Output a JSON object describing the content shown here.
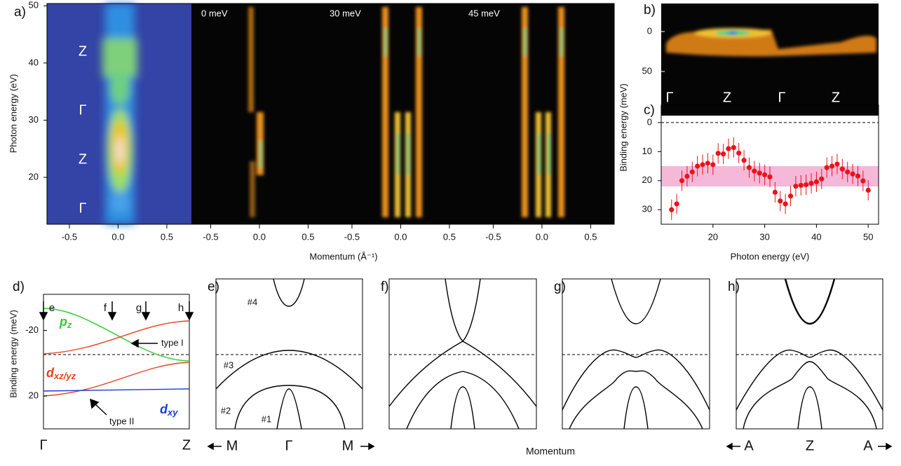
{
  "panels": {
    "a": {
      "label": "a)",
      "ylabel": "Photon energy (eV)",
      "xlabel": "Momentum (Å⁻¹)",
      "ylim": [
        11.8,
        50.4
      ],
      "yticks": [
        20,
        30,
        40,
        50
      ],
      "xlim": [
        -0.73,
        0.72
      ],
      "xticks": [
        -0.5,
        {
          "value": 0,
          "label": "0.0"
        },
        0.5
      ],
      "subpanels": [
        "0 meV",
        "30 meV",
        "45 meV"
      ],
      "points": [
        "Z",
        "Γ",
        "Z",
        "Γ"
      ]
    },
    "b": {
      "label": "b)",
      "yticks": [
        0,
        50
      ],
      "points": [
        "Γ",
        "Z",
        "Γ",
        "Z"
      ]
    },
    "c": {
      "label": "c)",
      "ylabel": "Binding energy (meV)",
      "xlabel": "Photon energy (eV)",
      "xlim": [
        10,
        52
      ],
      "ylim": [
        -6,
        35
      ],
      "xticks": [
        20,
        30,
        40,
        50
      ],
      "yticks": [
        0,
        10,
        20,
        30
      ],
      "color": "#e8141c",
      "band": [
        15,
        22
      ],
      "band_color": "#f4a6cf",
      "x": [
        12,
        13,
        14,
        15,
        16,
        17,
        18,
        19,
        20,
        21,
        22,
        23,
        24,
        25,
        26,
        27,
        28,
        29,
        30,
        31,
        32,
        33,
        34,
        35,
        36,
        37,
        38,
        39,
        40,
        41,
        42,
        43,
        44,
        45,
        46,
        47,
        48,
        49,
        50
      ],
      "values": [
        30,
        28,
        20,
        18.5,
        17,
        15,
        14.5,
        14,
        14.5,
        10.6,
        10.8,
        9,
        8.6,
        10.5,
        13,
        15.5,
        16.7,
        17.4,
        18,
        18.7,
        24,
        27,
        28,
        25.3,
        21.9,
        21.6,
        21.4,
        20.9,
        20.4,
        19.4,
        15.5,
        15,
        14.3,
        16,
        17,
        17.7,
        18.4,
        20.1,
        23.3
      ],
      "errors": [
        3.5,
        3.5,
        3.5,
        3.5,
        3.5,
        3.5,
        3.5,
        3.5,
        3.5,
        3.5,
        3.5,
        3.5,
        3.5,
        3.5,
        3.5,
        3.5,
        3.5,
        3.5,
        3.5,
        3.5,
        3.5,
        3.5,
        3.5,
        3.5,
        3.5,
        3.5,
        3.5,
        3.5,
        3.5,
        3.5,
        3.5,
        3.5,
        3.5,
        3.5,
        3.5,
        3.5,
        3.5,
        3.5,
        3.5
      ]
    },
    "d": {
      "label": "d)",
      "ylabel": "Binding energy (meV)",
      "yticks": [
        -20,
        20
      ],
      "ylim": [
        -42,
        40
      ],
      "pz": {
        "main": "p",
        "sub": "z"
      },
      "dxz": {
        "main": "d",
        "sub": "xz/yz"
      },
      "dxy": {
        "main": "d",
        "sub": "xy"
      },
      "arrows": [
        "e",
        "f",
        "g",
        "h"
      ],
      "type1": "type I",
      "type2": "type II",
      "left": "Γ",
      "right": "Z"
    },
    "e": {
      "label": "e)",
      "bands": [
        "#4",
        "#3",
        "#2",
        "#1"
      ],
      "left": "M",
      "center": "Γ",
      "right": "M"
    },
    "f": {
      "label": "f)"
    },
    "g": {
      "label": "g)"
    },
    "h": {
      "label": "h)",
      "left": "A",
      "center": "Z",
      "right": "A"
    },
    "xlabel": "Momentum"
  }
}
